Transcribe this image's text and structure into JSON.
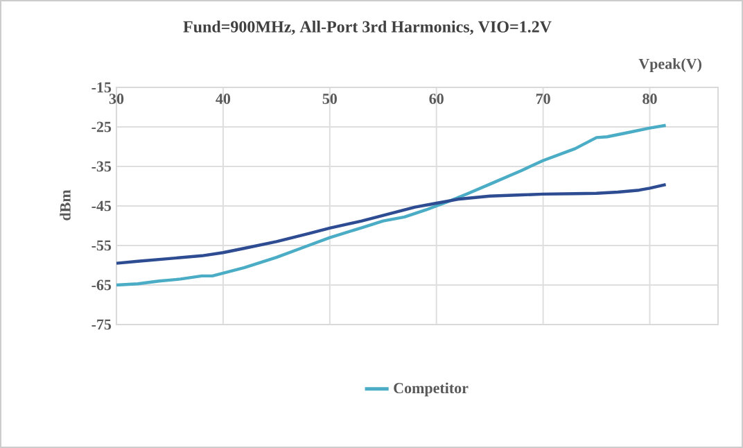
{
  "chart_data": {
    "type": "line",
    "title": "Fund=900MHz, All-Port 3rd Harmonics, VIO=1.2V",
    "xlabel": "Vpeak(V)",
    "ylabel": "dBm",
    "xlim": [
      30,
      86.4
    ],
    "xticks": [
      30,
      40,
      50,
      60,
      70,
      80
    ],
    "ylim": [
      -75,
      -15
    ],
    "yticks": [
      -15,
      -25,
      -35,
      -45,
      -55,
      -65,
      -75
    ],
    "grid": true,
    "legend": "bottom",
    "marker": "none",
    "line_style": "solid",
    "series": [
      {
        "name": "Competitor",
        "color": "#4bacc6",
        "x": [
          30,
          32,
          34,
          36,
          38,
          39,
          40,
          42,
          45,
          48,
          50,
          53,
          55,
          57,
          59,
          61,
          63,
          65,
          68,
          70,
          73,
          75,
          76,
          78,
          80,
          81.5
        ],
        "values": [
          -65,
          -64.7,
          -64,
          -63.5,
          -62.7,
          -62.7,
          -62,
          -60.6,
          -58,
          -55,
          -53,
          -50.5,
          -48.8,
          -47.8,
          -46,
          -44,
          -41.8,
          -39.5,
          -36,
          -33.5,
          -30.5,
          -27.7,
          -27.5,
          -26.4,
          -25.3,
          -24.6
        ]
      },
      {
        "color": "#2e4c92",
        "x": [
          30,
          32,
          35,
          38,
          40,
          42,
          45,
          48,
          50,
          53,
          55,
          58,
          60,
          62,
          65,
          68,
          70,
          73,
          75,
          77,
          79,
          80,
          81.5
        ],
        "values": [
          -59.5,
          -59,
          -58.3,
          -57.6,
          -56.8,
          -55.7,
          -54,
          -52,
          -50.6,
          -48.8,
          -47.4,
          -45.3,
          -44.3,
          -43.3,
          -42.5,
          -42.2,
          -42,
          -41.9,
          -41.8,
          -41.5,
          -41,
          -40.5,
          -39.6
        ]
      }
    ]
  }
}
